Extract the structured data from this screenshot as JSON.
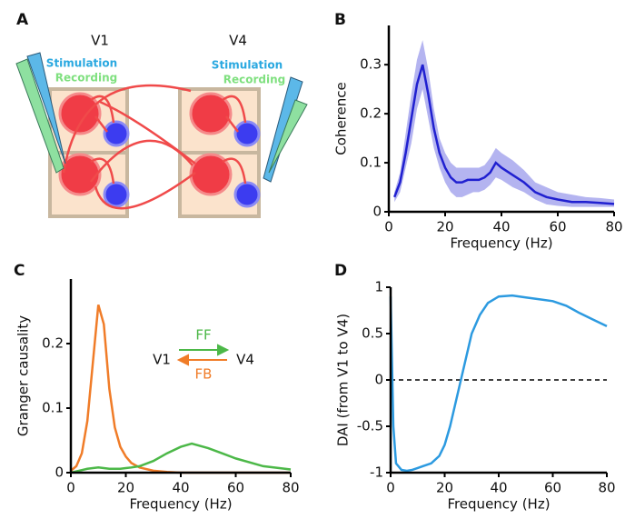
{
  "diagram": {
    "panel": "A",
    "regions": [
      {
        "label": "V1",
        "stimulation": "Stimulation",
        "recording": "Recording"
      },
      {
        "label": "V4",
        "stimulation": "Stimulation",
        "recording": "Recording"
      }
    ]
  },
  "chart_data": [
    {
      "type": "line",
      "panel": "B",
      "xlabel": "Frequency (Hz)",
      "ylabel": "Coherence",
      "xlim": [
        0,
        80
      ],
      "ylim": [
        0,
        0.38
      ],
      "xticks": [
        0,
        20,
        40,
        60,
        80
      ],
      "yticks": [
        0,
        0.1,
        0.2,
        0.3
      ],
      "x": [
        2,
        4,
        6,
        8,
        10,
        12,
        14,
        16,
        18,
        20,
        22,
        24,
        26,
        28,
        30,
        32,
        34,
        36,
        38,
        40,
        44,
        48,
        52,
        56,
        60,
        65,
        70,
        75,
        80
      ],
      "series": [
        {
          "color": "#2020d0",
          "values": [
            0.03,
            0.06,
            0.12,
            0.19,
            0.26,
            0.3,
            0.24,
            0.17,
            0.12,
            0.09,
            0.07,
            0.06,
            0.06,
            0.065,
            0.065,
            0.065,
            0.07,
            0.08,
            0.1,
            0.09,
            0.075,
            0.06,
            0.04,
            0.03,
            0.025,
            0.02,
            0.02,
            0.018,
            0.016
          ]
        }
      ],
      "band": {
        "color": "#b4b4f0",
        "upper": [
          0.04,
          0.08,
          0.16,
          0.24,
          0.31,
          0.35,
          0.29,
          0.21,
          0.15,
          0.12,
          0.1,
          0.09,
          0.09,
          0.09,
          0.09,
          0.09,
          0.095,
          0.11,
          0.13,
          0.12,
          0.105,
          0.085,
          0.06,
          0.05,
          0.04,
          0.035,
          0.03,
          0.028,
          0.025
        ],
        "lower": [
          0.02,
          0.04,
          0.09,
          0.14,
          0.21,
          0.25,
          0.19,
          0.13,
          0.09,
          0.06,
          0.04,
          0.03,
          0.03,
          0.035,
          0.04,
          0.04,
          0.045,
          0.055,
          0.07,
          0.065,
          0.05,
          0.04,
          0.025,
          0.015,
          0.012,
          0.01,
          0.01,
          0.01,
          0.01
        ]
      }
    },
    {
      "type": "line",
      "panel": "C",
      "xlabel": "Frequency (Hz)",
      "ylabel": "Granger causality",
      "xlim": [
        0,
        80
      ],
      "ylim": [
        0,
        0.3
      ],
      "xticks": [
        0,
        20,
        40,
        60,
        80
      ],
      "yticks": [
        0,
        0.1,
        0.2
      ],
      "x": [
        0,
        2,
        4,
        6,
        8,
        10,
        12,
        14,
        16,
        18,
        20,
        22,
        25,
        30,
        35,
        40,
        44,
        50,
        55,
        60,
        70,
        80
      ],
      "legend_nodes": [
        "V1",
        "V4"
      ],
      "series": [
        {
          "name": "FB",
          "color": "#f07c28",
          "values": [
            0.003,
            0.01,
            0.03,
            0.08,
            0.17,
            0.26,
            0.23,
            0.13,
            0.07,
            0.04,
            0.025,
            0.015,
            0.008,
            0.003,
            0.001,
            0,
            0,
            0,
            0,
            0,
            0,
            0
          ]
        },
        {
          "name": "FF",
          "color": "#4cb848",
          "values": [
            0,
            0.002,
            0.004,
            0.006,
            0.007,
            0.008,
            0.007,
            0.006,
            0.006,
            0.006,
            0.007,
            0.008,
            0.01,
            0.018,
            0.03,
            0.04,
            0.045,
            0.038,
            0.03,
            0.022,
            0.01,
            0.005
          ]
        }
      ]
    },
    {
      "type": "line",
      "panel": "D",
      "xlabel": "Frequency (Hz)",
      "ylabel": "DAI (from V1 to V4)",
      "xlim": [
        0,
        80
      ],
      "ylim": [
        -1,
        1
      ],
      "xticks": [
        0,
        20,
        40,
        60,
        80
      ],
      "yticks": [
        -1,
        -0.5,
        0,
        0.5,
        1
      ],
      "hline": 0,
      "x": [
        0,
        1,
        2,
        4,
        6,
        8,
        10,
        12,
        15,
        18,
        20,
        22,
        24,
        26,
        28,
        30,
        33,
        36,
        40,
        45,
        50,
        55,
        60,
        65,
        70,
        75,
        80
      ],
      "series": [
        {
          "color": "#2c9ae0",
          "values": [
            0.9,
            -0.5,
            -0.9,
            -0.97,
            -0.98,
            -0.97,
            -0.95,
            -0.93,
            -0.9,
            -0.82,
            -0.7,
            -0.5,
            -0.25,
            0,
            0.25,
            0.5,
            0.7,
            0.83,
            0.9,
            0.91,
            0.89,
            0.87,
            0.85,
            0.8,
            0.72,
            0.65,
            0.58
          ]
        }
      ]
    }
  ]
}
